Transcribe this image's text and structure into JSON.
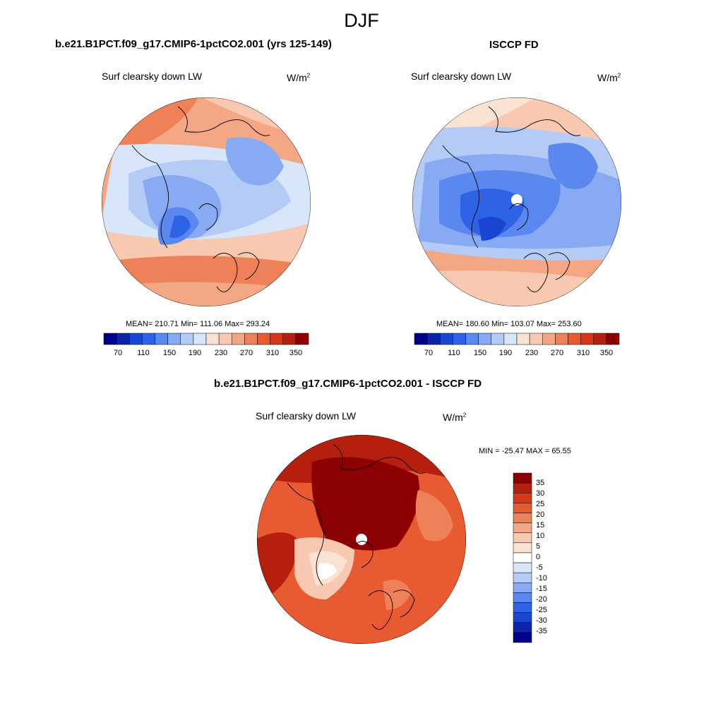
{
  "figure": {
    "season": "DJF"
  },
  "panels": [
    {
      "id": "model",
      "title": "b.e21.B1PCT.f09_g17.CMIP6-1pctCO2.001 (yrs 125-149)",
      "variable": "Surf clearsky down LW",
      "units": "W/m",
      "units_exp": "2",
      "stats": "MEAN= 210.71  Min= 111.06  Max= 293.24",
      "colorbar_ticks": [
        "70",
        "110",
        "150",
        "190",
        "230",
        "270",
        "310",
        "350"
      ]
    },
    {
      "id": "obs",
      "title": "ISCCP FD",
      "variable": "Surf clearsky down LW",
      "units": "W/m",
      "units_exp": "2",
      "stats": "MEAN= 180.60  Min= 103.07  Max= 253.60",
      "colorbar_ticks": [
        "70",
        "110",
        "150",
        "190",
        "230",
        "270",
        "310",
        "350"
      ]
    },
    {
      "id": "diff",
      "title": "b.e21.B1PCT.f09_g17.CMIP6-1pctCO2.001 - ISCCP FD",
      "variable": "Surf clearsky down LW",
      "units": "W/m",
      "units_exp": "2",
      "stats": "MIN = -25.47 MAX =  65.55",
      "colorbar_ticks": [
        "35",
        "30",
        "25",
        "20",
        "15",
        "10",
        "5",
        "0",
        "-5",
        "-10",
        "-15",
        "-20",
        "-25",
        "-30",
        "-35"
      ]
    }
  ],
  "colors": {
    "abs_scale": [
      "#00008b",
      "#0b24a8",
      "#1a45d0",
      "#2f63e6",
      "#5a88ee",
      "#87aaf2",
      "#b4cbf6",
      "#d8e6fa",
      "#fbe3d3",
      "#f8c9b0",
      "#f4a784",
      "#ef8158",
      "#e85a32",
      "#d8381a",
      "#b51f0e",
      "#8b0000"
    ],
    "diff_scale": [
      "#8b0000",
      "#b51f0e",
      "#d8381a",
      "#e85a32",
      "#ef8158",
      "#f4a784",
      "#f8c9b0",
      "#fbe3d3",
      "#ffffff",
      "#d8e6fa",
      "#b4cbf6",
      "#87aaf2",
      "#5a88ee",
      "#2f63e6",
      "#1a45d0",
      "#0b24a8",
      "#00008b"
    ]
  },
  "chart_data": [
    {
      "type": "heatmap",
      "projection": "north polar stereographic",
      "title": "b.e21.B1PCT.f09_g17.CMIP6-1pctCO2.001 (yrs 125-149)",
      "field": "Surf clearsky down LW",
      "units": "W/m2",
      "mean": 210.71,
      "min": 111.06,
      "max": 293.24,
      "colorbar_levels": [
        70,
        90,
        110,
        130,
        150,
        170,
        190,
        210,
        230,
        250,
        270,
        290,
        310,
        330,
        350
      ]
    },
    {
      "type": "heatmap",
      "projection": "north polar stereographic",
      "title": "ISCCP FD",
      "field": "Surf clearsky down LW",
      "units": "W/m2",
      "mean": 180.6,
      "min": 103.07,
      "max": 253.6,
      "colorbar_levels": [
        70,
        90,
        110,
        130,
        150,
        170,
        190,
        210,
        230,
        250,
        270,
        290,
        310,
        330,
        350
      ]
    },
    {
      "type": "heatmap",
      "projection": "north polar stereographic",
      "title": "b.e21.B1PCT.f09_g17.CMIP6-1pctCO2.001 - ISCCP FD",
      "field": "Surf clearsky down LW",
      "units": "W/m2",
      "min": -25.47,
      "max": 65.55,
      "colorbar_levels": [
        -35,
        -30,
        -25,
        -20,
        -15,
        -10,
        -5,
        0,
        5,
        10,
        15,
        20,
        25,
        30,
        35
      ]
    }
  ]
}
